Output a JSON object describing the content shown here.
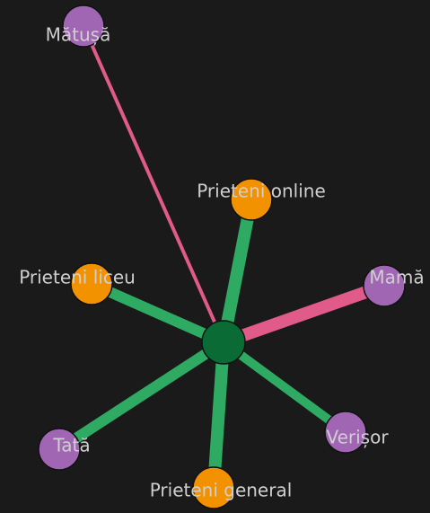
{
  "nodes": [
    {
      "label": "Mătușă"
    },
    {
      "label": "Prieteni online"
    },
    {
      "label": "Prieteni liceu"
    },
    {
      "label": "Mamă"
    },
    {
      "label": "Tată"
    },
    {
      "label": "Verișor"
    },
    {
      "label": "Prieteni general"
    }
  ]
}
